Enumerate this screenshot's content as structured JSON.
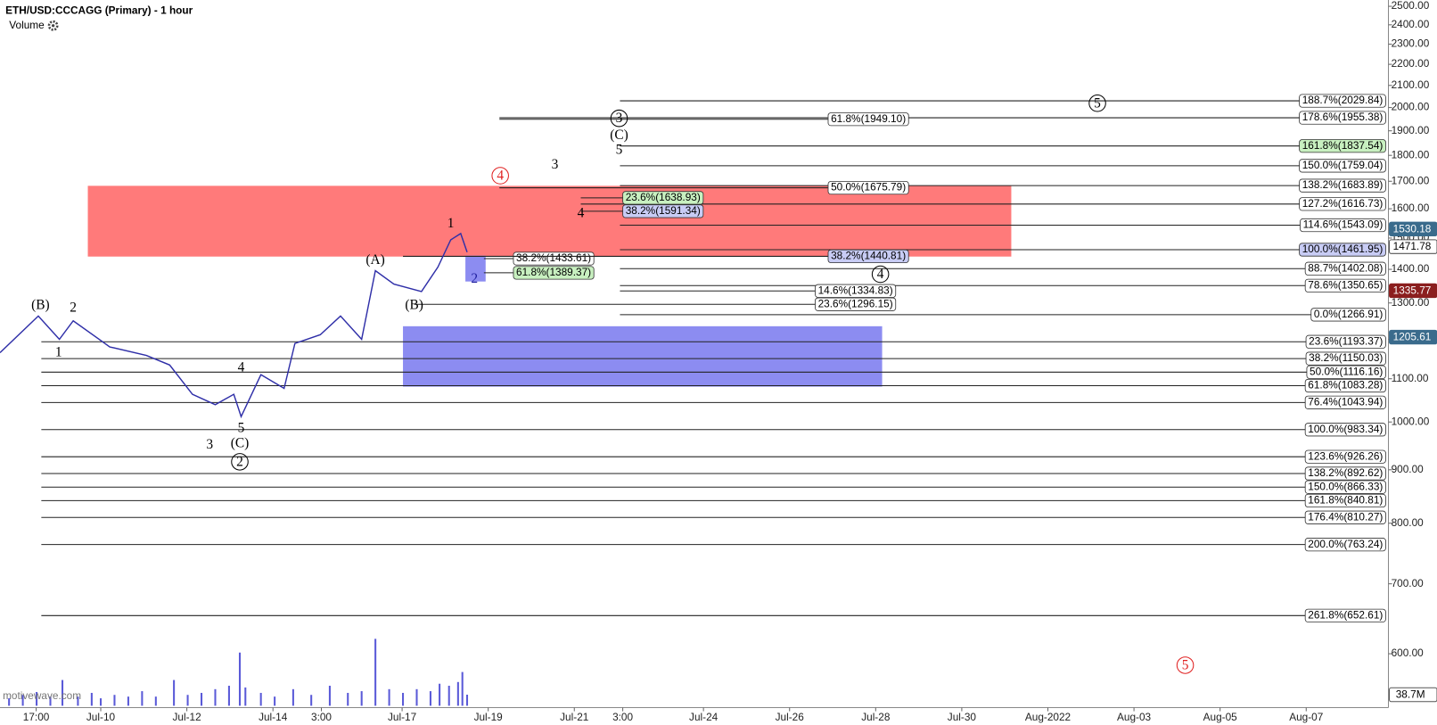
{
  "chart_data": {
    "type": "ohlc-wave",
    "title": "ETH/USD:CCCAGG (Primary) - 1 hour",
    "volume_title": "Volume",
    "watermark": "motivewave.com",
    "log_scale": true,
    "xlim": [
      -1.34,
      30.91
    ],
    "ylim": [
      535,
      2535
    ],
    "xticks": [
      {
        "value": -0.5,
        "label": "17:00"
      },
      {
        "value": 1,
        "label": "Jul-10"
      },
      {
        "value": 3,
        "label": "Jul-12"
      },
      {
        "value": 5,
        "label": "Jul-14"
      },
      {
        "value": 6.125,
        "label": "3:00"
      },
      {
        "value": 8,
        "label": "Jul-17"
      },
      {
        "value": 10,
        "label": "Jul-19"
      },
      {
        "value": 12,
        "label": "Jul-21"
      },
      {
        "value": 13.125,
        "label": "3:00"
      },
      {
        "value": 15,
        "label": "Jul-24"
      },
      {
        "value": 17,
        "label": "Jul-26"
      },
      {
        "value": 19,
        "label": "Jul-28"
      },
      {
        "value": 21,
        "label": "Jul-30"
      },
      {
        "value": 23,
        "label": "Aug-2022"
      },
      {
        "value": 25,
        "label": "Aug-03"
      },
      {
        "value": 27,
        "label": "Aug-05"
      },
      {
        "value": 29,
        "label": "Aug-07"
      }
    ],
    "yticks": [
      {
        "value": 2500,
        "label": "2500.00"
      },
      {
        "value": 2400,
        "label": "2400.00"
      },
      {
        "value": 2300,
        "label": "2300.00"
      },
      {
        "value": 2200,
        "label": "2200.00"
      },
      {
        "value": 2100,
        "label": "2100.00"
      },
      {
        "value": 2000,
        "label": "2000.00"
      },
      {
        "value": 1900,
        "label": "1900.00"
      },
      {
        "value": 1800,
        "label": "1800.00"
      },
      {
        "value": 1700,
        "label": "1700.00"
      },
      {
        "value": 1600,
        "label": "1600.00"
      },
      {
        "value": 1500,
        "label": "1500.00"
      },
      {
        "value": 1400,
        "label": "1400.00"
      },
      {
        "value": 1300,
        "label": "1300.00"
      },
      {
        "value": 1200,
        "label": "1200.00"
      },
      {
        "value": 1100,
        "label": "1100.00"
      },
      {
        "value": 1000,
        "label": "1000.00"
      },
      {
        "value": 900,
        "label": "900.00"
      },
      {
        "value": 800,
        "label": "800.00"
      },
      {
        "value": 700,
        "label": "700.00"
      },
      {
        "value": 600,
        "label": "600.00"
      }
    ],
    "price": {
      "color": "#2f2fa8",
      "x": [
        -1.34,
        -0.45,
        0.04,
        0.36,
        1.21,
        2.06,
        2.6,
        3.13,
        3.66,
        4.09,
        4.26,
        4.72,
        5.26,
        5.51,
        6.1,
        6.57,
        7.06,
        7.38,
        7.81,
        8.45,
        8.83,
        9.13,
        9.36,
        9.51
      ],
      "values": [
        1165,
        1263,
        1200,
        1250,
        1180,
        1158,
        1134,
        1063,
        1039,
        1063,
        1012,
        1110,
        1077,
        1189,
        1212,
        1263,
        1200,
        1396,
        1355,
        1333,
        1407,
        1494,
        1515,
        1454
      ]
    },
    "volume": {
      "color": "#5a5ad8",
      "ylim": [
        0,
        250
      ],
      "x": [
        -1.13,
        -0.81,
        -0.49,
        -0.17,
        0.11,
        0.47,
        0.79,
        1.0,
        1.32,
        1.64,
        1.96,
        2.28,
        2.7,
        3.02,
        3.34,
        3.66,
        3.98,
        4.23,
        4.36,
        4.72,
        5.04,
        5.47,
        5.89,
        6.32,
        6.74,
        7.06,
        7.38,
        7.7,
        8.02,
        8.34,
        8.66,
        8.87,
        9.09,
        9.3,
        9.4,
        9.51
      ],
      "values": [
        26,
        38,
        48,
        32,
        90,
        32,
        45,
        26,
        38,
        32,
        51,
        32,
        90,
        38,
        45,
        58,
        70,
        186,
        64,
        45,
        32,
        58,
        38,
        70,
        45,
        51,
        234,
        58,
        45,
        58,
        51,
        77,
        70,
        83,
        118,
        38.7
      ]
    },
    "volume_badge": {
      "value": 38.7,
      "label": "38.7M"
    },
    "price_badges": [
      {
        "value": 1530.18,
        "color": "#3a6b8c"
      },
      {
        "value": 1471.78,
        "color": "#ffffff"
      },
      {
        "value": 1335.77,
        "color": "#8b1e1e"
      },
      {
        "value": 1205.61,
        "color": "#3a6b8c"
      }
    ],
    "zones": [
      {
        "from": 0.7,
        "to": 22.15,
        "top": 1683,
        "bottom": 1440,
        "color": "#ff6b6b"
      },
      {
        "from": 8.02,
        "to": 19.15,
        "top": 1235,
        "bottom": 1081,
        "color": "#7f7ff0"
      },
      {
        "from": 9.47,
        "to": 9.94,
        "top": 1443,
        "bottom": 1363,
        "color": "#7f7ff0"
      }
    ],
    "fib_levels": [
      {
        "label": "188.7%(2029.84)",
        "price": 2029.84,
        "from": 13.06,
        "fill": "#ffffff"
      },
      {
        "label": "178.6%(1955.38)",
        "price": 1955.38,
        "from": 10.26,
        "fill": "#ffffff"
      },
      {
        "label": "161.8%(1837.54)",
        "price": 1837.54,
        "from": 13.06,
        "fill": "#c8f0c0"
      },
      {
        "label": "150.0%(1759.04)",
        "price": 1759.04,
        "from": 13.06,
        "fill": "#ffffff"
      },
      {
        "label": "138.2%(1683.89)",
        "price": 1683.89,
        "from": 13.06,
        "fill": "#ffffff"
      },
      {
        "label": "127.2%(1616.73)",
        "price": 1616.73,
        "from": 12.15,
        "fill": "#ffffff"
      },
      {
        "label": "114.6%(1543.09)",
        "price": 1543.09,
        "from": 13.06,
        "fill": "#ffffff"
      },
      {
        "label": "100.0%(1461.95)",
        "price": 1461.95,
        "from": 13.06,
        "fill": "#c8ccf5"
      },
      {
        "label": "88.7%(1402.08)",
        "price": 1402.08,
        "from": 13.06,
        "fill": "#ffffff"
      },
      {
        "label": "78.6%(1350.65)",
        "price": 1350.65,
        "from": 13.06,
        "fill": "#ffffff"
      },
      {
        "label": "0.0%(1266.91)",
        "price": 1266.91,
        "from": 13.06,
        "fill": "#ffffff"
      },
      {
        "label": "23.6%(1193.37)",
        "price": 1193.37,
        "from": -0.38,
        "fill": "#ffffff"
      },
      {
        "label": "38.2%(1150.03)",
        "price": 1150.03,
        "from": -0.38,
        "fill": "#ffffff"
      },
      {
        "label": "50.0%(1116.16)",
        "price": 1116.16,
        "from": -0.38,
        "fill": "#ffffff"
      },
      {
        "label": "61.8%(1083.28)",
        "price": 1083.28,
        "from": -0.38,
        "fill": "#ffffff"
      },
      {
        "label": "76.4%(1043.94)",
        "price": 1043.94,
        "from": -0.38,
        "fill": "#ffffff"
      },
      {
        "label": "100.0%(983.34)",
        "price": 983.34,
        "from": -0.38,
        "fill": "#ffffff"
      },
      {
        "label": "123.6%(926.26)",
        "price": 926.26,
        "from": -0.38,
        "fill": "#ffffff"
      },
      {
        "label": "138.2%(892.62)",
        "price": 892.62,
        "from": -0.38,
        "fill": "#ffffff"
      },
      {
        "label": "150.0%(866.33)",
        "price": 866.33,
        "from": -0.38,
        "fill": "#ffffff"
      },
      {
        "label": "161.8%(840.81)",
        "price": 840.81,
        "from": -0.38,
        "fill": "#ffffff"
      },
      {
        "label": "176.4%(810.27)",
        "price": 810.27,
        "from": -0.38,
        "fill": "#ffffff"
      },
      {
        "label": "200.0%(763.24)",
        "price": 763.24,
        "from": -0.38,
        "fill": "#ffffff"
      },
      {
        "label": "261.8%(652.61)",
        "price": 652.61,
        "from": -0.38,
        "fill": "#ffffff"
      }
    ],
    "fib_marks": [
      {
        "label": "61.8%(1949.10)",
        "price": 1949.1,
        "from": 10.26,
        "at": 18.83,
        "fill": "#ffffff"
      },
      {
        "label": "50.0%(1675.79)",
        "price": 1675.79,
        "from": 10.26,
        "at": 18.83,
        "fill": "#ffffff"
      },
      {
        "label": "23.6%(1638.93)",
        "price": 1638.93,
        "from": 12.15,
        "at": 14.06,
        "fill": "#c8f0c0"
      },
      {
        "label": "38.2%(1591.34)",
        "price": 1591.34,
        "from": 12.15,
        "at": 14.06,
        "fill": "#c8ccf5"
      },
      {
        "label": "38.2%(1433.61)",
        "price": 1433.61,
        "from": 9.9,
        "at": 11.52,
        "fill": "#ffffff"
      },
      {
        "label": "61.8%(1389.37)",
        "price": 1389.37,
        "from": 9.9,
        "at": 11.52,
        "fill": "#c8f0c0"
      },
      {
        "label": "38.2%(1440.81)",
        "price": 1440.81,
        "from": 8.02,
        "at": 18.83,
        "fill": "#c8ccf5"
      },
      {
        "label": "14.6%(1334.83)",
        "price": 1334.83,
        "from": 13.06,
        "at": 18.53,
        "fill": "#ffffff"
      },
      {
        "label": "23.6%(1296.15)",
        "price": 1296.15,
        "from": 8.28,
        "at": 18.53,
        "fill": "#ffffff"
      }
    ],
    "waves": [
      {
        "text": "(B)",
        "x": -0.4,
        "price": 1294,
        "color": "#000000",
        "circled": false
      },
      {
        "text": "2",
        "x": 0.36,
        "price": 1287,
        "color": "#000000",
        "circled": false
      },
      {
        "text": "1",
        "x": 0.02,
        "price": 1166,
        "color": "#000000",
        "circled": false
      },
      {
        "text": "4",
        "x": 4.26,
        "price": 1128,
        "color": "#000000",
        "circled": false
      },
      {
        "text": "3",
        "x": 3.53,
        "price": 952,
        "color": "#000000",
        "circled": false
      },
      {
        "text": "5",
        "x": 4.26,
        "price": 987,
        "color": "#000000",
        "circled": false
      },
      {
        "text": "(C)",
        "x": 4.23,
        "price": 954,
        "color": "#000000",
        "circled": false
      },
      {
        "text": "2",
        "x": 4.23,
        "price": 916,
        "color": "#000000",
        "circled": true
      },
      {
        "text": "(A)",
        "x": 7.38,
        "price": 1429,
        "color": "#000000",
        "circled": false
      },
      {
        "text": "(B)",
        "x": 8.28,
        "price": 1295,
        "color": "#000000",
        "circled": false
      },
      {
        "text": "1",
        "x": 9.13,
        "price": 1549,
        "color": "#000000",
        "circled": false
      },
      {
        "text": "2",
        "x": 9.68,
        "price": 1371,
        "color": "#2020a0",
        "circled": false
      },
      {
        "text": "4",
        "x": 10.28,
        "price": 1721,
        "color": "#e02020",
        "circled": true
      },
      {
        "text": "3",
        "x": 11.55,
        "price": 1764,
        "color": "#000000",
        "circled": false
      },
      {
        "text": "4",
        "x": 12.15,
        "price": 1585,
        "color": "#000000",
        "circled": false
      },
      {
        "text": "3",
        "x": 13.04,
        "price": 1953,
        "color": "#000000",
        "circled": true
      },
      {
        "text": "(C)",
        "x": 13.04,
        "price": 1883,
        "color": "#000000",
        "circled": false
      },
      {
        "text": "5",
        "x": 13.04,
        "price": 1822,
        "color": "#000000",
        "circled": false
      },
      {
        "text": "4",
        "x": 19.11,
        "price": 1385,
        "color": "#000000",
        "circled": true
      },
      {
        "text": "5",
        "x": 24.15,
        "price": 2019,
        "color": "#000000",
        "circled": true
      },
      {
        "text": "5",
        "x": 26.19,
        "price": 585,
        "color": "#e02020",
        "circled": true
      }
    ]
  }
}
